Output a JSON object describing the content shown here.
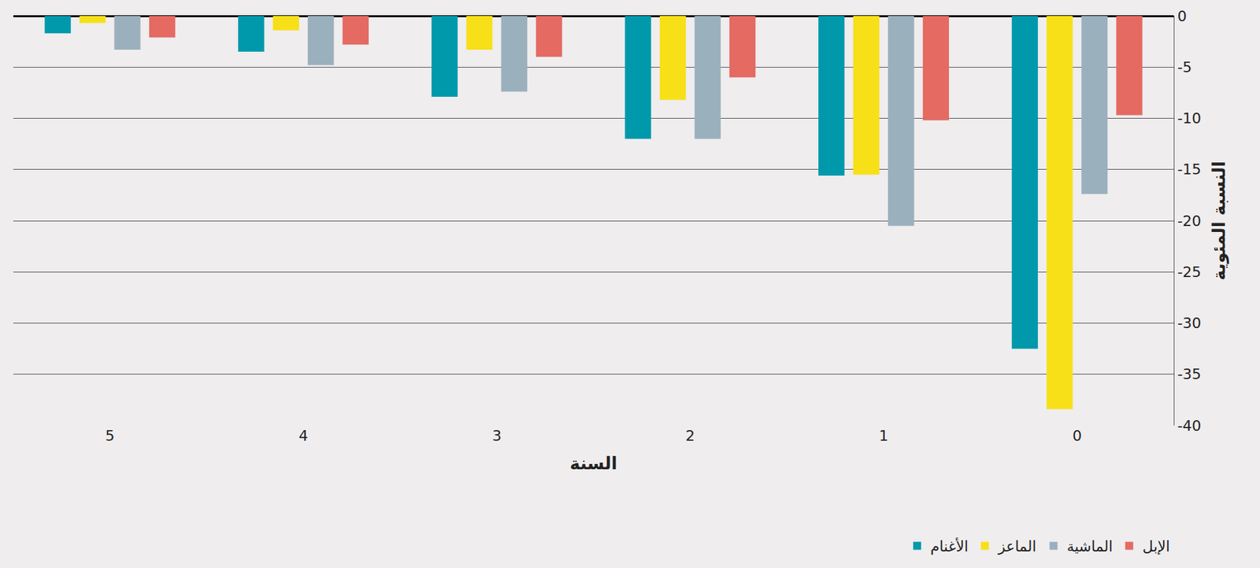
{
  "chart_data": {
    "type": "bar",
    "x_label": "السنة",
    "y_label": "النسبة المئوية",
    "categories": [
      "5",
      "4",
      "3",
      "2",
      "1",
      "0"
    ],
    "series": [
      {
        "name": "الأغنام",
        "color": "#0099ac",
        "values": [
          -1.7,
          -3.5,
          -7.9,
          -12.0,
          -15.6,
          -32.5
        ]
      },
      {
        "name": "الماعز",
        "color": "#f7e017",
        "values": [
          -0.7,
          -1.4,
          -3.3,
          -8.2,
          -15.5,
          -38.4
        ]
      },
      {
        "name": "الماشية",
        "color": "#9bb0bd",
        "values": [
          -3.3,
          -4.8,
          -7.4,
          -12.0,
          -20.5,
          -17.4
        ]
      },
      {
        "name": "الإبل",
        "color": "#e46a62",
        "values": [
          -2.1,
          -2.8,
          -4.0,
          -6.0,
          -10.2,
          -9.7
        ]
      }
    ],
    "ylim": [
      -40,
      0
    ],
    "yticks": [
      0,
      -5,
      -10,
      -15,
      -20,
      -25,
      -30,
      -35,
      -40
    ],
    "grid": true,
    "legend": "bottom"
  }
}
